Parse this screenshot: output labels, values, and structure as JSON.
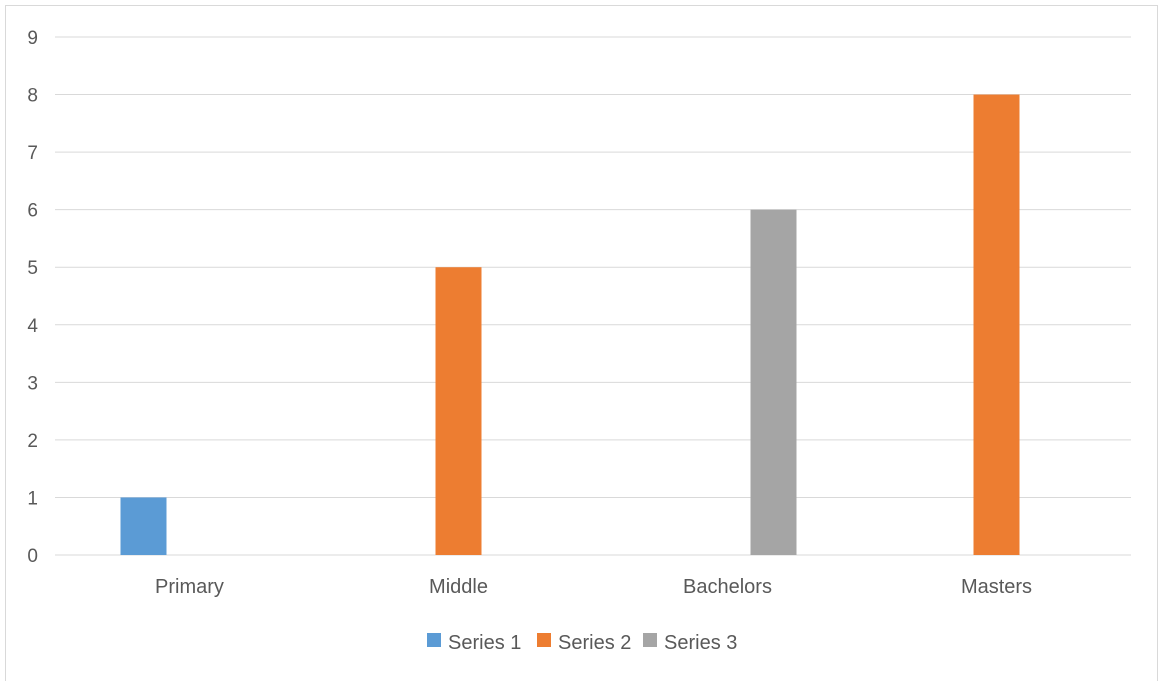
{
  "chart_data": {
    "type": "bar",
    "categories": [
      "Primary",
      "Middle",
      "Bachelors",
      "Masters"
    ],
    "series": [
      {
        "name": "Series 1",
        "color": "#5b9bd5",
        "values": [
          1,
          0,
          0,
          0
        ]
      },
      {
        "name": "Series 2",
        "color": "#ed7d31",
        "values": [
          0,
          5,
          0,
          8
        ]
      },
      {
        "name": "Series 3",
        "color": "#a5a5a5",
        "values": [
          0,
          0,
          6,
          0
        ]
      }
    ],
    "yticks": [
      "0",
      "1",
      "2",
      "3",
      "4",
      "5",
      "6",
      "7",
      "8",
      "9"
    ],
    "ylim": [
      0,
      9
    ],
    "grid": true,
    "legend_position": "bottom"
  }
}
